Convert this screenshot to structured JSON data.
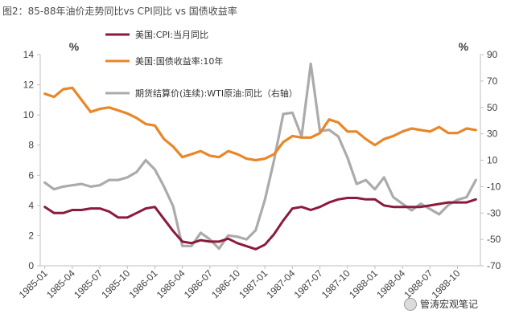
{
  "page_title": "图2：85-88年油价走势同比vs CPI同比 vs 国债收益率",
  "watermark": "管涛宏观笔记",
  "colors": {
    "cpi": "#8B1A3B",
    "yield": "#E8872A",
    "wti": "#ABABAB",
    "axis": "#BFBFBF"
  },
  "chart_data": {
    "type": "line",
    "y_left": {
      "unit": "%",
      "range": [
        0,
        14
      ],
      "ticks": [
        0,
        2,
        4,
        6,
        8,
        10,
        12,
        14
      ]
    },
    "y_right": {
      "unit": "%",
      "range": [
        -70,
        90
      ],
      "ticks": [
        -70,
        -50,
        -30,
        -10,
        10,
        30,
        50,
        70,
        90
      ]
    },
    "x_range": [
      "1985-01",
      "1988-12"
    ],
    "x_ticks": [
      "1985-01",
      "1985-04",
      "1985-07",
      "1985-10",
      "1986-01",
      "1986-04",
      "1986-07",
      "1986-10",
      "1987-01",
      "1987-04",
      "1987-07",
      "1987-10",
      "1988-01",
      "1988-04",
      "1988-07",
      "1988-10"
    ],
    "series": [
      {
        "key": "cpi",
        "name": "美国:CPI:当月同比",
        "axis": "left",
        "values": [
          3.9,
          3.5,
          3.5,
          3.7,
          3.7,
          3.8,
          3.8,
          3.6,
          3.2,
          3.2,
          3.5,
          3.8,
          3.9,
          3.1,
          2.3,
          1.6,
          1.5,
          1.7,
          1.6,
          1.6,
          1.8,
          1.5,
          1.3,
          1.1,
          1.4,
          2.1,
          3.0,
          3.8,
          3.9,
          3.7,
          3.9,
          4.2,
          4.4,
          4.5,
          4.5,
          4.4,
          4.4,
          4.0,
          3.9,
          3.9,
          3.9,
          3.9,
          4.0,
          4.1,
          4.2,
          4.2,
          4.2,
          4.4
        ]
      },
      {
        "key": "yield",
        "name": "美国:国债收益率:10年",
        "axis": "left",
        "values": [
          11.4,
          11.2,
          11.7,
          11.8,
          11.0,
          10.2,
          10.4,
          10.5,
          10.3,
          10.1,
          9.8,
          9.4,
          9.3,
          8.4,
          7.9,
          7.2,
          7.4,
          7.6,
          7.3,
          7.2,
          7.6,
          7.4,
          7.1,
          7.0,
          7.1,
          7.4,
          8.2,
          8.6,
          8.5,
          8.5,
          8.8,
          9.7,
          9.5,
          8.9,
          8.9,
          8.4,
          8.0,
          8.4,
          8.6,
          8.9,
          9.1,
          9.0,
          8.9,
          9.2,
          8.8,
          8.8,
          9.1,
          9.0
        ]
      },
      {
        "key": "wti",
        "name": "期货结算价(连续):WTI原油:同比（右轴）",
        "axis": "right",
        "values": [
          -7,
          -12,
          -10,
          -9,
          -8,
          -10,
          -9,
          -5,
          -5,
          -3,
          1,
          10,
          3,
          -10,
          -25,
          -55,
          -55,
          -45,
          -50,
          -57,
          -47,
          -48,
          -50,
          -43,
          -20,
          10,
          45,
          46,
          28,
          83,
          32,
          33,
          28,
          12,
          -8,
          -5,
          -12,
          -3,
          -18,
          -23,
          -28,
          -23,
          -27,
          -31,
          -24,
          -20,
          -18,
          -5
        ]
      }
    ]
  }
}
